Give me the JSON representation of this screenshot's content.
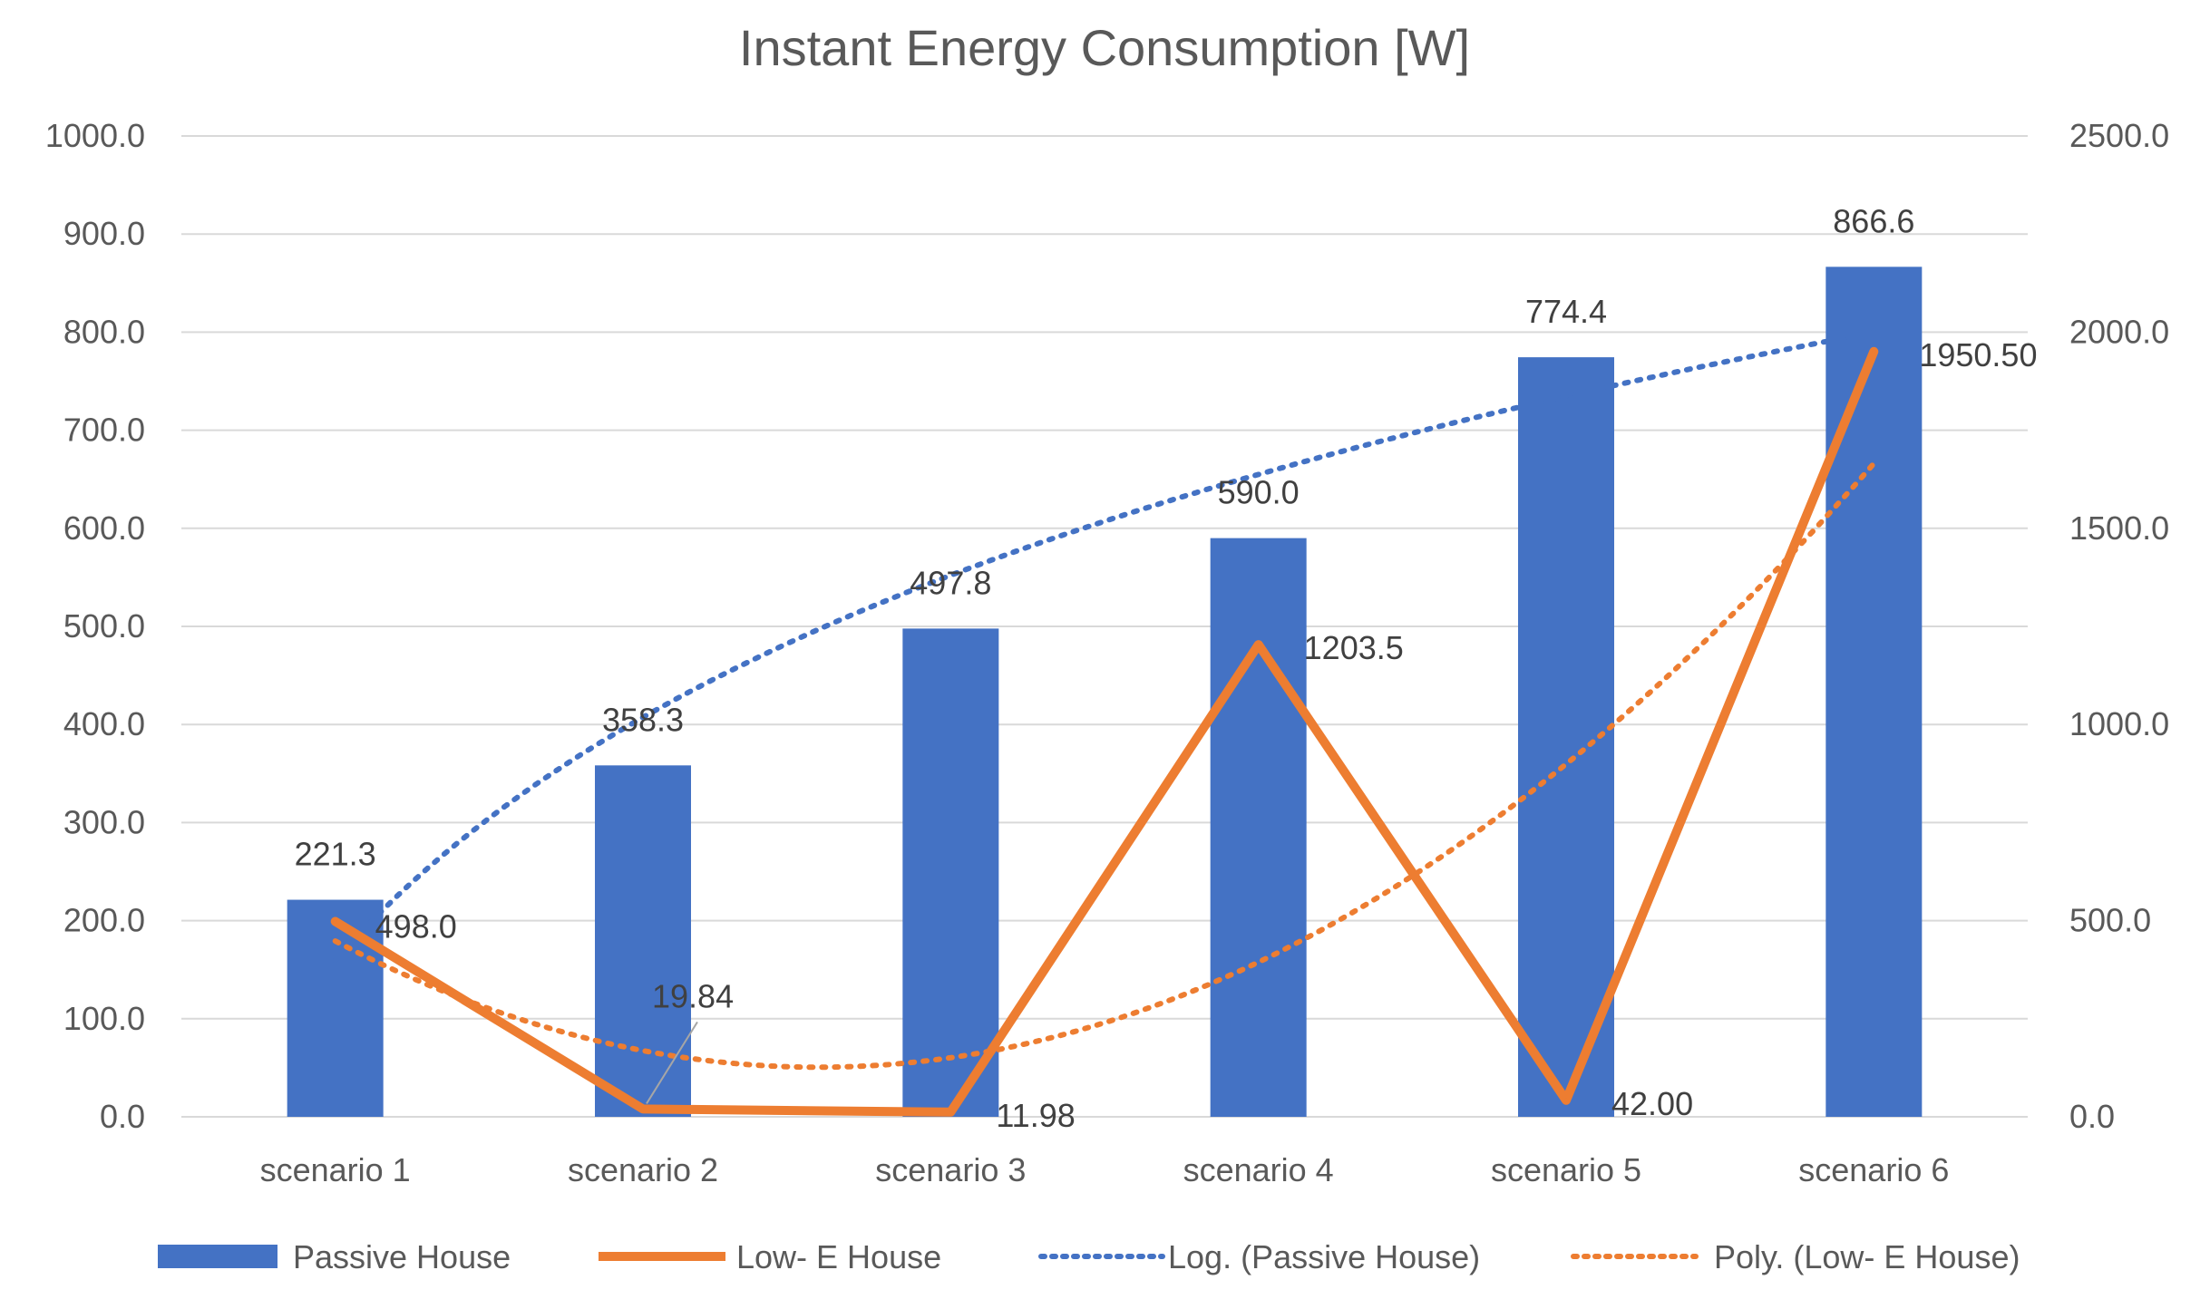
{
  "chart_data": {
    "type": "bar",
    "title": "Instant Energy Consumption [W]",
    "categories": [
      "scenario 1",
      "scenario 2",
      "scenario 3",
      "scenario 4",
      "scenario 5",
      "scenario 6"
    ],
    "ylim": [
      0,
      1000
    ],
    "y2lim": [
      0,
      2500
    ],
    "yticks": [
      "0.0",
      "100.0",
      "200.0",
      "300.0",
      "400.0",
      "500.0",
      "600.0",
      "700.0",
      "800.0",
      "900.0",
      "1000.0"
    ],
    "y2ticks": [
      "0.0",
      "500.0",
      "1000.0",
      "1500.0",
      "2000.0",
      "2500.0"
    ],
    "series": [
      {
        "name": "Passive House",
        "kind": "bar",
        "axis": "left",
        "values": [
          221.3,
          358.3,
          497.8,
          590.0,
          774.4,
          866.6
        ],
        "labels": [
          "221.3",
          "358.3",
          "497.8",
          "590.0",
          "774.4",
          "866.6"
        ]
      },
      {
        "name": "Low- E House",
        "kind": "line",
        "axis": "right",
        "values": [
          498.0,
          19.84,
          11.98,
          1203.5,
          42.0,
          1950.5
        ],
        "labels": [
          "498.0",
          "19.84",
          "11.98",
          "1203.5",
          "42.00",
          "1950.50"
        ]
      }
    ],
    "trendlines": [
      {
        "name": "Log. (Passive House)",
        "type": "logarithmic",
        "of": "Passive House",
        "axis": "left"
      },
      {
        "name": "Poly. (Low- E House)",
        "type": "polynomial",
        "of": "Low- E House",
        "axis": "right"
      }
    ],
    "legend": "bottom",
    "colors": {
      "bar": "#4472c4",
      "line": "#ed7d31",
      "grid": "#d9d9d9",
      "text": "#595959"
    }
  }
}
